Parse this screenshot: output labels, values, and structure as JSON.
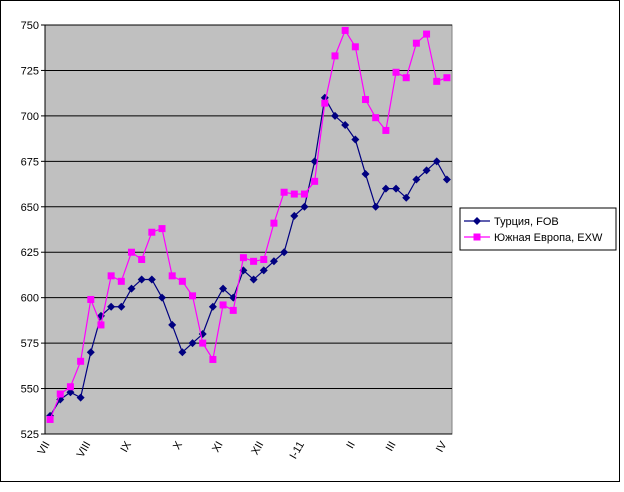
{
  "chart_data": {
    "type": "line",
    "categories": [
      "VII",
      null,
      null,
      null,
      "VIII",
      null,
      null,
      null,
      "IX",
      null,
      null,
      null,
      null,
      "X",
      null,
      null,
      null,
      "XI",
      null,
      null,
      null,
      "XII",
      null,
      null,
      null,
      "I-11",
      null,
      null,
      null,
      null,
      "II",
      null,
      null,
      null,
      "III",
      null,
      null,
      null,
      null,
      "IV"
    ],
    "series": [
      {
        "name": "Турция, FOB",
        "color": "#000080",
        "marker": "diamond",
        "values": [
          535,
          544,
          548,
          545,
          570,
          590,
          595,
          595,
          605,
          610,
          610,
          600,
          585,
          570,
          575,
          580,
          595,
          605,
          600,
          615,
          610,
          615,
          620,
          625,
          645,
          650,
          675,
          710,
          700,
          695,
          687,
          668,
          650,
          660,
          660,
          655,
          665,
          670,
          675,
          665
        ]
      },
      {
        "name": "Южная Европа, EXW",
        "color": "#ff00ff",
        "marker": "square",
        "values": [
          533,
          547,
          551,
          565,
          599,
          585,
          612,
          609,
          625,
          621,
          636,
          638,
          612,
          609,
          601,
          575,
          566,
          596,
          593,
          622,
          620,
          621,
          641,
          658,
          657,
          657,
          664,
          707,
          733,
          747,
          738,
          709,
          699,
          692,
          724,
          721,
          740,
          745,
          719,
          721
        ]
      }
    ],
    "ylim": [
      525,
      750
    ],
    "yticks": [
      525,
      550,
      575,
      600,
      625,
      650,
      675,
      700,
      725,
      750
    ],
    "grid": true,
    "legend": "right"
  }
}
